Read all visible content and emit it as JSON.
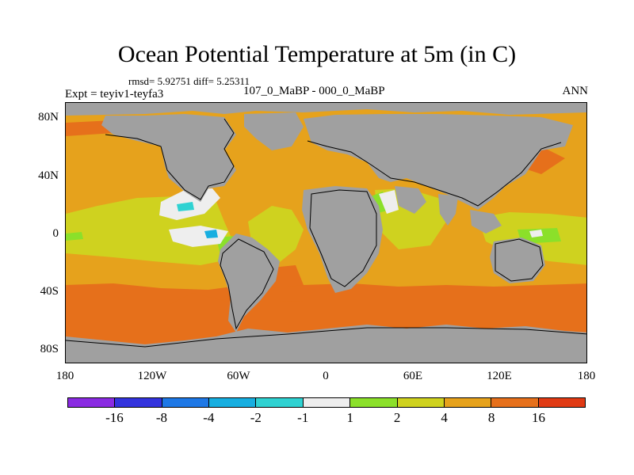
{
  "header": {
    "title": "Ocean Potential Temperature at 5m (in C)",
    "stats": "rmsd= 5.92751 diff= 5.25311",
    "experiment": "Expt = teyiv1-teyfa3",
    "difference": "107_0_MaBP - 000_0_MaBP",
    "season": "ANN"
  },
  "axes": {
    "lat_labels": [
      "80N",
      "40N",
      "0",
      "40S",
      "80S"
    ],
    "lon_labels": [
      "180",
      "120W",
      "60W",
      "0",
      "60E",
      "120E",
      "180"
    ]
  },
  "colorbar": {
    "colors": [
      "#8a2be2",
      "#3333dd",
      "#1e78e6",
      "#17aee0",
      "#2fd2d2",
      "#eeeeee",
      "#8be02a",
      "#cfd21f",
      "#e6a21c",
      "#e6701b",
      "#e03a14"
    ],
    "labels": [
      "-16",
      "-8",
      "-4",
      "-2",
      "-1",
      "1",
      "2",
      "4",
      "8",
      "16"
    ]
  },
  "map_colors": {
    "land": "#a0a0a0",
    "ocean_base": "#e6a21c"
  }
}
